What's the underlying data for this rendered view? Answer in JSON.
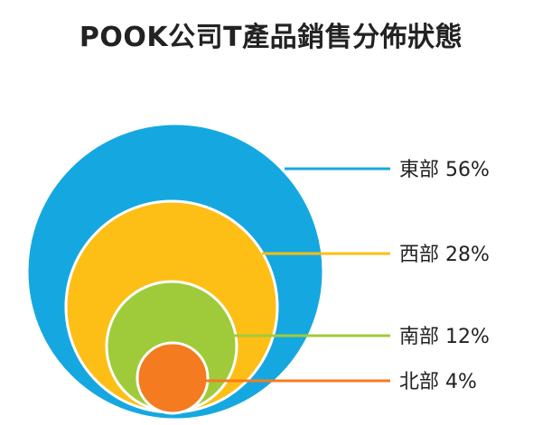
{
  "chart_data": {
    "type": "pie",
    "title": "POOK公司T產品銷售分佈狀態",
    "categories": [
      "東部",
      "西部",
      "南部",
      "北部"
    ],
    "values": [
      56,
      28,
      12,
      4
    ],
    "labels": [
      "東部 56%",
      "西部 28%",
      "南部 12%",
      "北部 4%"
    ],
    "colors": [
      "#15A8E0",
      "#FDBE16",
      "#9FCB3B",
      "#F47B20"
    ],
    "legend": "right",
    "grid": false
  }
}
